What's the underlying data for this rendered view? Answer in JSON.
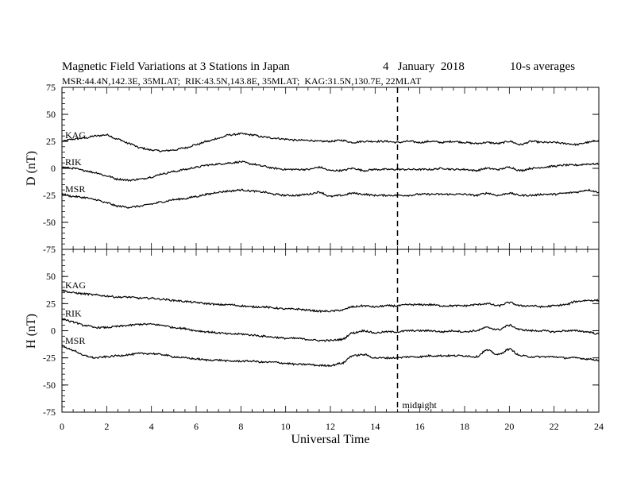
{
  "header": {
    "title": "Magnetic Field Variations at 3 Stations in Japan",
    "date": "4   January  2018",
    "averaging": "10-s averages",
    "stations": "MSR:44.4N,142.3E, 35MLAT;  RIK:43.5N,143.8E, 35MLAT;  KAG:31.5N,130.7E, 22MLAT"
  },
  "colors": {
    "line": "#000000",
    "axis": "#000000",
    "background": "#ffffff"
  },
  "chart_data": [
    {
      "type": "line",
      "panel": "D",
      "ylabel": "D (nT)",
      "xlabel": "",
      "xlim": [
        0,
        24
      ],
      "ylim": [
        -75,
        75
      ],
      "yticks": [
        75,
        50,
        25,
        0,
        -25,
        -50,
        -75
      ],
      "ytick_labels": [
        "75",
        "50",
        "25",
        "0",
        "-25",
        "-50",
        "-75"
      ],
      "grid": false,
      "series": [
        {
          "name": "KAG",
          "x": [
            0,
            0.5,
            1,
            1.5,
            2,
            2.5,
            3,
            3.5,
            4,
            4.5,
            5,
            5.5,
            6,
            6.5,
            7,
            7.5,
            8,
            8.5,
            9,
            9.5,
            10,
            10.5,
            11,
            11.5,
            12,
            12.5,
            13,
            13.5,
            14,
            14.5,
            15,
            15.5,
            16,
            16.5,
            17,
            17.5,
            18,
            18.5,
            19,
            19.5,
            20,
            20.5,
            21,
            21.5,
            22,
            22.5,
            23,
            23.5,
            24
          ],
          "values": [
            25,
            27,
            28,
            30,
            31,
            27,
            23,
            19,
            17,
            16,
            17,
            19,
            22,
            25,
            28,
            31,
            32,
            31,
            29,
            28,
            27,
            26,
            26,
            25,
            25,
            26,
            24,
            25,
            25,
            25,
            24,
            25,
            24,
            25,
            24,
            25,
            24,
            23,
            24,
            23,
            25,
            22,
            25,
            24,
            24,
            23,
            22,
            24,
            26
          ]
        },
        {
          "name": "RIK",
          "x": [
            0,
            0.5,
            1,
            1.5,
            2,
            2.5,
            3,
            3.5,
            4,
            4.5,
            5,
            5.5,
            6,
            6.5,
            7,
            7.5,
            8,
            8.5,
            9,
            9.5,
            10,
            10.5,
            11,
            11.5,
            12,
            12.5,
            13,
            13.5,
            14,
            14.5,
            15,
            15.5,
            16,
            16.5,
            17,
            17.5,
            18,
            18.5,
            19,
            19.5,
            20,
            20.5,
            21,
            21.5,
            22,
            22.5,
            23,
            23.5,
            24
          ],
          "values": [
            1,
            0,
            -2,
            -4,
            -7,
            -10,
            -11,
            -10,
            -8,
            -5,
            -3,
            -1,
            1,
            3,
            4,
            5,
            6,
            4,
            2,
            0,
            -1,
            -1,
            -1,
            1,
            -2,
            -2,
            0,
            -2,
            -1,
            -1,
            -1,
            -1,
            -1,
            -1,
            0,
            -1,
            -1,
            -2,
            0,
            -1,
            1,
            -2,
            0,
            1,
            2,
            3,
            3,
            4,
            4
          ]
        },
        {
          "name": "MSR",
          "x": [
            0,
            0.5,
            1,
            1.5,
            2,
            2.5,
            3,
            3.5,
            4,
            4.5,
            5,
            5.5,
            6,
            6.5,
            7,
            7.5,
            8,
            8.5,
            9,
            9.5,
            10,
            10.5,
            11,
            11.5,
            12,
            12.5,
            13,
            13.5,
            14,
            14.5,
            15,
            15.5,
            16,
            16.5,
            17,
            17.5,
            18,
            18.5,
            19,
            19.5,
            20,
            20.5,
            21,
            21.5,
            22,
            22.5,
            23,
            23.5,
            24
          ],
          "values": [
            -24,
            -26,
            -27,
            -29,
            -32,
            -35,
            -36,
            -35,
            -33,
            -31,
            -29,
            -28,
            -26,
            -24,
            -22,
            -21,
            -20,
            -21,
            -22,
            -24,
            -25,
            -25,
            -24,
            -22,
            -26,
            -25,
            -23,
            -24,
            -25,
            -25,
            -25,
            -25,
            -24,
            -24,
            -24,
            -24,
            -24,
            -25,
            -23,
            -25,
            -23,
            -25,
            -25,
            -24,
            -24,
            -23,
            -22,
            -20,
            -22
          ]
        }
      ]
    },
    {
      "type": "line",
      "panel": "H",
      "ylabel": "H (nT)",
      "xlabel": "Universal Time",
      "xlim": [
        0,
        24
      ],
      "ylim": [
        -75,
        75
      ],
      "yticks": [
        50,
        25,
        0,
        -25,
        -50,
        -75
      ],
      "ytick_labels": [
        "50",
        "25",
        "0",
        "-25",
        "-50",
        "-75"
      ],
      "xticks": [
        0,
        2,
        4,
        6,
        8,
        10,
        12,
        14,
        16,
        18,
        20,
        22,
        24
      ],
      "xtick_labels": [
        "0",
        "2",
        "4",
        "6",
        "8",
        "10",
        "12",
        "14",
        "16",
        "18",
        "20",
        "22",
        "24"
      ],
      "grid": false,
      "series": [
        {
          "name": "KAG",
          "x": [
            0,
            0.5,
            1,
            1.5,
            2,
            2.5,
            3,
            3.5,
            4,
            4.5,
            5,
            5.5,
            6,
            6.5,
            7,
            7.5,
            8,
            8.5,
            9,
            9.5,
            10,
            10.5,
            11,
            11.5,
            12,
            12.5,
            13,
            13.5,
            14,
            14.5,
            15,
            15.5,
            16,
            16.5,
            17,
            17.5,
            18,
            18.5,
            19,
            19.5,
            20,
            20.5,
            21,
            21.5,
            22,
            22.5,
            23,
            23.5,
            24
          ],
          "values": [
            37,
            35,
            34,
            33,
            32,
            31,
            31,
            30,
            30,
            29,
            28,
            27,
            26,
            25,
            24,
            24,
            23,
            22,
            22,
            21,
            20,
            20,
            19,
            18,
            18,
            19,
            22,
            23,
            22,
            23,
            23,
            24,
            24,
            24,
            23,
            23,
            23,
            24,
            25,
            23,
            26,
            23,
            23,
            22,
            23,
            24,
            27,
            28,
            28
          ]
        },
        {
          "name": "RIK",
          "x": [
            0,
            0.5,
            1,
            1.5,
            2,
            2.5,
            3,
            3.5,
            4,
            4.5,
            5,
            5.5,
            6,
            6.5,
            7,
            7.5,
            8,
            8.5,
            9,
            9.5,
            10,
            10.5,
            11,
            11.5,
            12,
            12.5,
            13,
            13.5,
            14,
            14.5,
            15,
            15.5,
            16,
            16.5,
            17,
            17.5,
            18,
            18.5,
            19,
            19.5,
            20,
            20.5,
            21,
            21.5,
            22,
            22.5,
            23,
            23.5,
            24
          ],
          "values": [
            11,
            8,
            5,
            3,
            3,
            4,
            5,
            6,
            6,
            5,
            3,
            2,
            0,
            -1,
            -2,
            -3,
            -3,
            -4,
            -5,
            -6,
            -7,
            -7,
            -8,
            -9,
            -9,
            -8,
            -2,
            0,
            -2,
            -1,
            -1,
            0,
            0,
            0,
            -1,
            0,
            -1,
            0,
            3,
            1,
            5,
            1,
            0,
            0,
            -1,
            0,
            0,
            -1,
            -3
          ]
        },
        {
          "name": "MSR",
          "x": [
            0,
            0.5,
            1,
            1.5,
            2,
            2.5,
            3,
            3.5,
            4,
            4.5,
            5,
            5.5,
            6,
            6.5,
            7,
            7.5,
            8,
            8.5,
            9,
            9.5,
            10,
            10.5,
            11,
            11.5,
            12,
            12.5,
            13,
            13.5,
            14,
            14.5,
            15,
            15.5,
            16,
            16.5,
            17,
            17.5,
            18,
            18.5,
            19,
            19.5,
            20,
            20.5,
            21,
            21.5,
            22,
            22.5,
            23,
            23.5,
            24
          ],
          "values": [
            -14,
            -18,
            -23,
            -25,
            -24,
            -23,
            -22,
            -21,
            -21,
            -22,
            -24,
            -25,
            -26,
            -27,
            -27,
            -28,
            -28,
            -28,
            -29,
            -29,
            -30,
            -31,
            -31,
            -32,
            -32,
            -30,
            -23,
            -22,
            -25,
            -25,
            -25,
            -24,
            -24,
            -23,
            -23,
            -23,
            -23,
            -24,
            -18,
            -22,
            -17,
            -23,
            -24,
            -24,
            -24,
            -25,
            -25,
            -26,
            -27
          ]
        }
      ]
    }
  ],
  "annotations": {
    "midnight_label": "midnight",
    "midnight_x": 15
  }
}
